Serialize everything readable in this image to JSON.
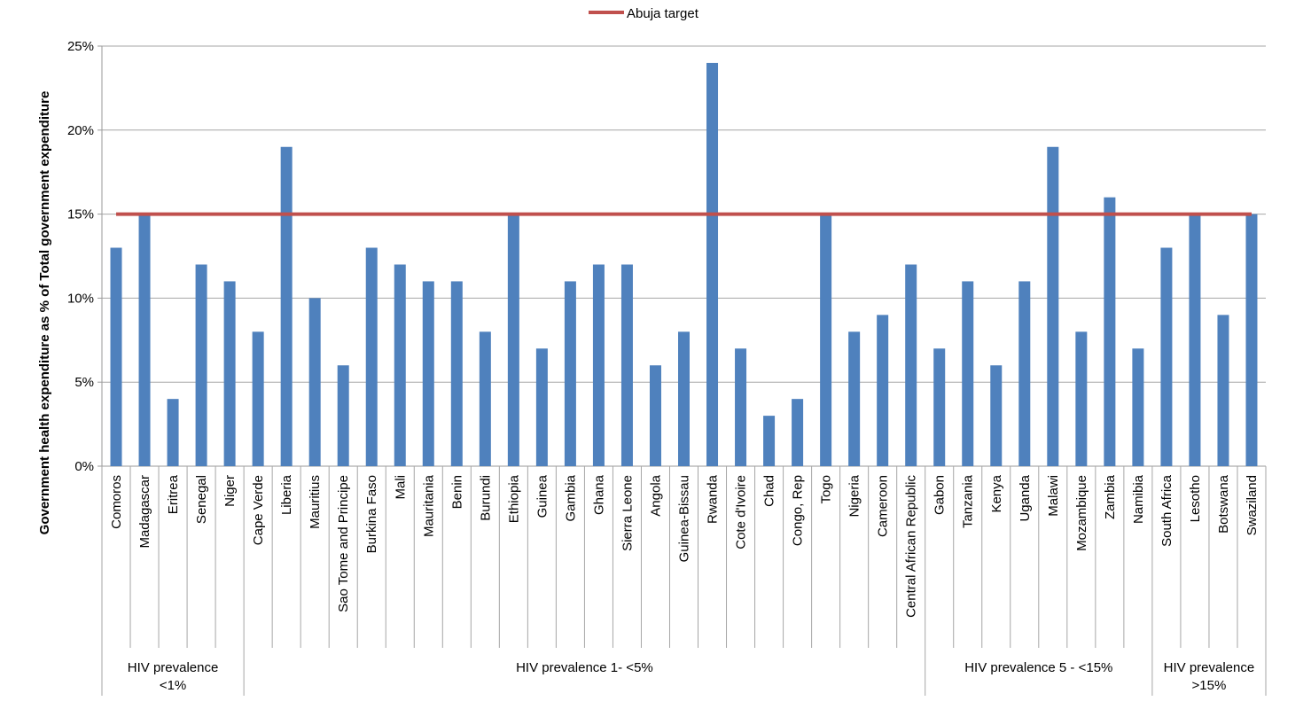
{
  "chart_data": {
    "type": "bar",
    "title": "",
    "ylabel": "Government health expenditure as % of Total government expenditure",
    "xlabel": "",
    "ylim": [
      0,
      25
    ],
    "yticks": [
      "0%",
      "5%",
      "10%",
      "15%",
      "20%",
      "25%"
    ],
    "ytick_values": [
      0,
      5,
      10,
      15,
      20,
      25
    ],
    "grid": true,
    "legend_position": "top-center",
    "categories": [
      "Comoros",
      "Madagascar",
      "Eritrea",
      "Senegal",
      "Niger",
      "Cape Verde",
      "Liberia",
      "Mauritius",
      "Sao Tome and Principe",
      "Burkina Faso",
      "Mali",
      "Mauritania",
      "Benin",
      "Burundi",
      "Ethiopia",
      "Guinea",
      "Gambia",
      "Ghana",
      "Sierra Leone",
      "Angola",
      "Guinea-Bissau",
      "Rwanda",
      "Cote d'Ivoire",
      "Chad",
      "Congo, Rep",
      "Togo",
      "Nigeria",
      "Cameroon",
      "Central African Republic",
      "Gabon",
      "Tanzania",
      "Kenya",
      "Uganda",
      "Malawi",
      "Mozambique",
      "Zambia",
      "Namibia",
      "South Africa",
      "Lesotho",
      "Botswana",
      "Swaziland"
    ],
    "series": [
      {
        "values": [
          13,
          15,
          4,
          12,
          11,
          8,
          19,
          10,
          6,
          13,
          12,
          11,
          11,
          8,
          15,
          7,
          11,
          12,
          12,
          6,
          8,
          24,
          7,
          3,
          4,
          15,
          8,
          9,
          12,
          7,
          11,
          6,
          11,
          19,
          8,
          16,
          7,
          13,
          15,
          9,
          15
        ],
        "color": "#4F81BD"
      },
      {
        "name": "Abuja target",
        "type": "line",
        "value": 15,
        "color": "#C0504D"
      }
    ],
    "groups": [
      {
        "label": "HIV prevalence <1%",
        "lines": [
          "HIV prevalence",
          "<1%"
        ],
        "start": 0,
        "end": 4
      },
      {
        "label": "HIV prevalence 1- <5%",
        "lines": [
          "HIV prevalence 1- <5%"
        ],
        "start": 5,
        "end": 28
      },
      {
        "label": "HIV prevalence 5 - <15%",
        "lines": [
          "HIV prevalence 5 - <15%"
        ],
        "start": 29,
        "end": 36
      },
      {
        "label": "HIV prevalence >15%",
        "lines": [
          "HIV prevalence",
          ">15%"
        ],
        "start": 37,
        "end": 40
      }
    ],
    "legend": [
      {
        "label": "Abuja target",
        "color": "#C0504D"
      }
    ]
  }
}
